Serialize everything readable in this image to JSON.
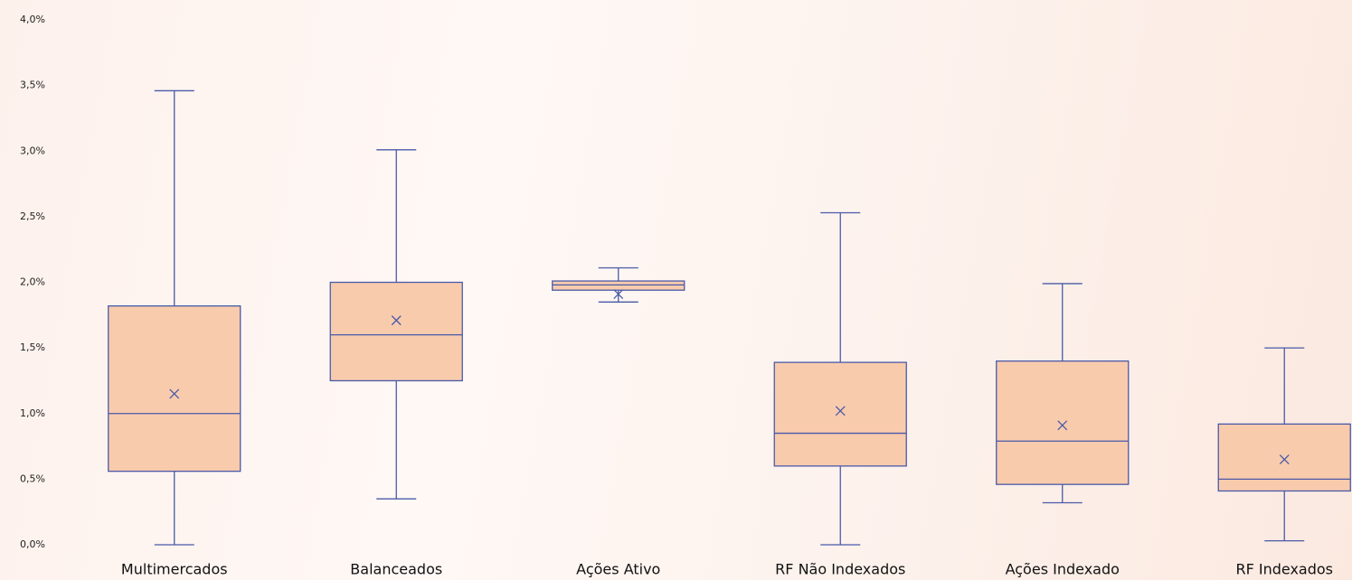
{
  "chart_data": {
    "type": "box",
    "categories": [
      "Multimercados",
      "Balanceados",
      "Ações Ativo",
      "RF Não Indexados",
      "Ações Indexado",
      "RF Indexados"
    ],
    "min": [
      0.0,
      0.35,
      1.85,
      0.0,
      0.32,
      0.03
    ],
    "q1": [
      0.56,
      1.25,
      1.94,
      0.6,
      0.46,
      0.41
    ],
    "median": [
      1.0,
      1.6,
      1.98,
      0.85,
      0.79,
      0.5
    ],
    "q3": [
      1.82,
      2.0,
      2.01,
      1.39,
      1.4,
      0.92
    ],
    "max": [
      3.46,
      3.01,
      2.11,
      2.53,
      1.99,
      1.5
    ],
    "mean": [
      1.15,
      1.71,
      1.91,
      1.02,
      0.91,
      0.65
    ],
    "color": "#f8cbad",
    "line_color": "#4a5aa8",
    "ylim": [
      0,
      4
    ],
    "yticks": [
      {
        "value": 0,
        "label": "0,0%"
      },
      {
        "value": 0.5,
        "label": "0,5%"
      },
      {
        "value": 1,
        "label": "1,0%"
      },
      {
        "value": 1.5,
        "label": "1,5%"
      },
      {
        "value": 2,
        "label": "2,0%"
      },
      {
        "value": 2.5,
        "label": "2,5%"
      },
      {
        "value": 3,
        "label": "3,0%"
      },
      {
        "value": 3.5,
        "label": "3,5%"
      },
      {
        "value": 4,
        "label": "4,0%"
      }
    ]
  }
}
